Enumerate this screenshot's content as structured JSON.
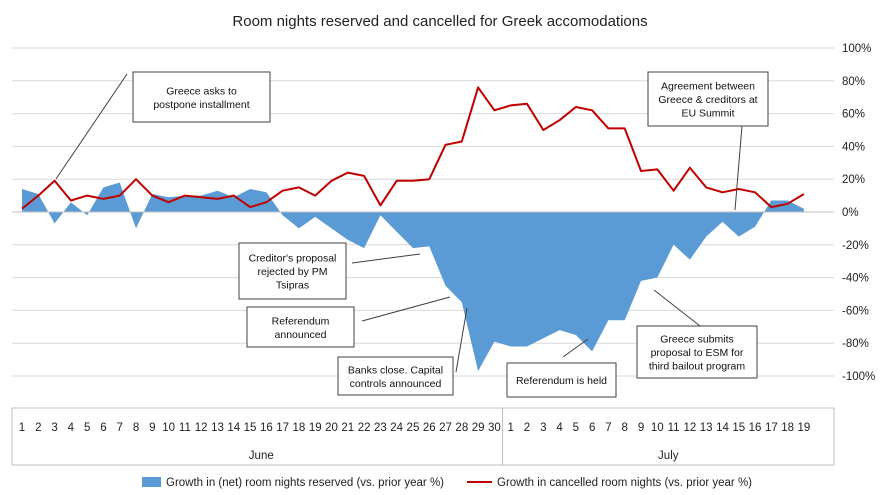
{
  "chart_data": {
    "type": "area",
    "title": "Room nights reserved and cancelled for Greek accomodations",
    "ylim": [
      -100,
      100
    ],
    "y_ticks": [
      "100%",
      "80%",
      "60%",
      "40%",
      "20%",
      "0%",
      "-20%",
      "-40%",
      "-60%",
      "-80%",
      "-100%"
    ],
    "y_tick_values": [
      100,
      80,
      60,
      40,
      20,
      0,
      -20,
      -40,
      -60,
      -80,
      -100
    ],
    "grid": true,
    "month_labels": [
      "June",
      "July"
    ],
    "x_day_labels": [
      "1",
      "2",
      "3",
      "4",
      "5",
      "6",
      "7",
      "8",
      "9",
      "10",
      "11",
      "12",
      "13",
      "14",
      "15",
      "16",
      "17",
      "18",
      "19",
      "20",
      "21",
      "22",
      "23",
      "24",
      "25",
      "26",
      "27",
      "28",
      "29",
      "30",
      "1",
      "2",
      "3",
      "4",
      "5",
      "6",
      "7",
      "8",
      "9",
      "10",
      "11",
      "12",
      "13",
      "14",
      "15",
      "16",
      "17",
      "18",
      "19"
    ],
    "x_dates": [
      "Jun 1",
      "Jun 2",
      "Jun 3",
      "Jun 4",
      "Jun 5",
      "Jun 6",
      "Jun 7",
      "Jun 8",
      "Jun 9",
      "Jun 10",
      "Jun 11",
      "Jun 12",
      "Jun 13",
      "Jun 14",
      "Jun 15",
      "Jun 16",
      "Jun 17",
      "Jun 18",
      "Jun 19",
      "Jun 20",
      "Jun 21",
      "Jun 22",
      "Jun 23",
      "Jun 24",
      "Jun 25",
      "Jun 26",
      "Jun 27",
      "Jun 28",
      "Jun 29",
      "Jun 30",
      "Jul 1",
      "Jul 2",
      "Jul 3",
      "Jul 4",
      "Jul 5",
      "Jul 6",
      "Jul 7",
      "Jul 8",
      "Jul 9",
      "Jul 10",
      "Jul 11",
      "Jul 12",
      "Jul 13",
      "Jul 14",
      "Jul 15",
      "Jul 16",
      "Jul 17",
      "Jul 18",
      "Jul 19"
    ],
    "series": [
      {
        "name": "Growth in (net) room nights reserved (vs. prior year %)",
        "type": "area",
        "color": "#5b9bd5",
        "values": [
          14,
          11,
          -7,
          6,
          -2,
          15,
          18,
          -10,
          11,
          9,
          10,
          10,
          13,
          9,
          14,
          12,
          -2,
          -10,
          -3,
          -10,
          -17,
          -22,
          -2,
          -12,
          -22,
          -21,
          -45,
          -55,
          -97,
          -79,
          -82,
          -82,
          -77,
          -72,
          -75,
          -85,
          -66,
          -66,
          -42,
          -40,
          -20,
          -29,
          -15,
          -6,
          -15,
          -9,
          7,
          7,
          2
        ]
      },
      {
        "name": "Growth in cancelled room nights (vs. prior year %)",
        "type": "line",
        "color": "#c00000",
        "values": [
          2,
          10,
          19,
          7,
          10,
          8,
          10,
          20,
          10,
          6,
          10,
          9,
          8,
          10,
          3,
          6,
          13,
          15,
          10,
          19,
          24,
          22,
          4,
          19,
          19,
          20,
          41,
          43,
          76,
          62,
          65,
          66,
          50,
          56,
          64,
          62,
          51,
          51,
          25,
          26,
          13,
          27,
          15,
          12,
          14,
          12,
          3,
          5,
          11
        ]
      }
    ],
    "annotations": [
      {
        "text": [
          "Greece  asks to",
          "postpone installment"
        ]
      },
      {
        "text": [
          "Agreement  between",
          "Greece  & creditors at",
          "EU Summit"
        ]
      },
      {
        "text": [
          "Creditor's proposal",
          "rejected by PM",
          "Tsipras"
        ]
      },
      {
        "text": [
          "Referendum",
          "announced"
        ]
      },
      {
        "text": [
          "Banks close. Capital",
          "controls announced"
        ]
      },
      {
        "text": [
          "Referendum   is held"
        ]
      },
      {
        "text": [
          "Greece  submits",
          "proposal to ESM for",
          "third bailout program"
        ]
      }
    ],
    "legend_position": "bottom"
  }
}
